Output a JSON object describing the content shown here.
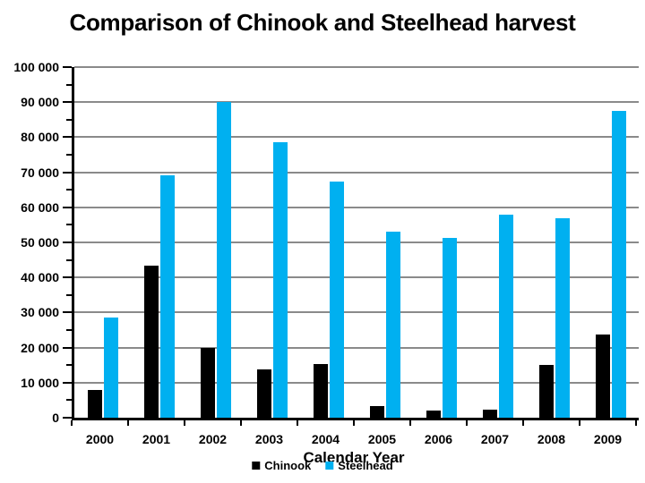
{
  "title": "Comparison of Chinook and Steelhead harvest",
  "chart_data": {
    "type": "bar",
    "title": "Comparison of Chinook and Steelhead harvest",
    "categories": [
      "2000",
      "2001",
      "2002",
      "2003",
      "2004",
      "2005",
      "2006",
      "2007",
      "2008",
      "2009"
    ],
    "series": [
      {
        "name": "Chinook",
        "color": "#000000",
        "values": [
          7800,
          43400,
          20000,
          13800,
          15300,
          3300,
          2000,
          2200,
          15000,
          23700
        ]
      },
      {
        "name": "Steelhead",
        "color": "#00b0f0",
        "values": [
          28600,
          69200,
          90000,
          78700,
          67300,
          53000,
          51300,
          57800,
          57000,
          87500
        ]
      }
    ],
    "xlabel": "Calendar Year",
    "ylabel": "",
    "ylim": [
      0,
      100000
    ],
    "ytick_step": 10000,
    "ytick_labels": [
      "0",
      "10 000",
      "20 000",
      "30 000",
      "40 000",
      "50 000",
      "60 000",
      "70 000",
      "80 000",
      "90 000",
      "100 000"
    ],
    "grid": true,
    "gridline_color": "#8a8a8a",
    "axis_color": "#000000",
    "legend_position": "bottom-center"
  },
  "legend": {
    "items": [
      {
        "label": "Chinook",
        "color": "#000000"
      },
      {
        "label": "Steelhead",
        "color": "#00b0f0"
      }
    ]
  }
}
